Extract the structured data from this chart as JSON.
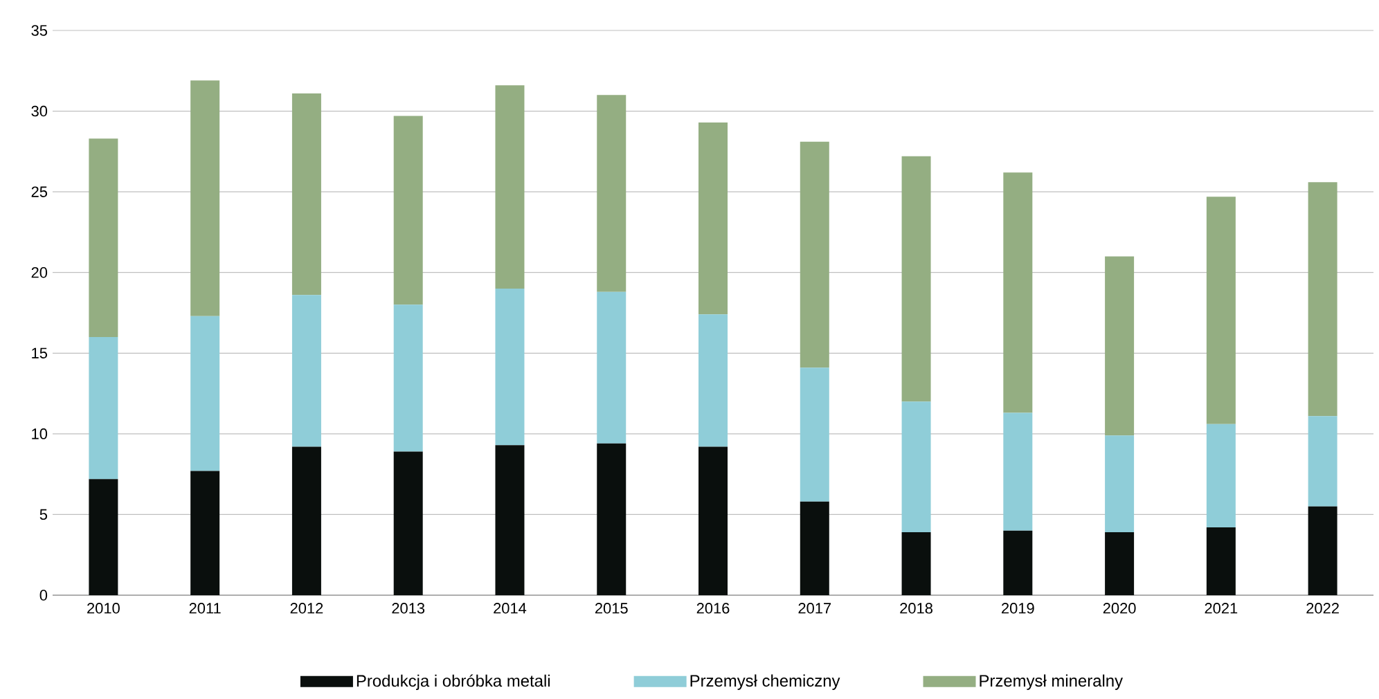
{
  "chart_data": {
    "type": "bar",
    "stacked": true,
    "categories": [
      "2010",
      "2011",
      "2012",
      "2013",
      "2014",
      "2015",
      "2016",
      "2017",
      "2018",
      "2019",
      "2020",
      "2021",
      "2022"
    ],
    "series": [
      {
        "name": "Produkcja i obróbka metali",
        "color": "#0a0f0d",
        "values": [
          7.2,
          7.7,
          9.2,
          8.9,
          9.3,
          9.4,
          9.2,
          5.8,
          3.9,
          4.0,
          3.9,
          4.2,
          5.5
        ]
      },
      {
        "name": "Przemysł chemiczny",
        "color": "#8fcdd8",
        "values": [
          8.8,
          9.6,
          9.4,
          9.1,
          9.7,
          9.4,
          8.2,
          8.3,
          8.1,
          7.3,
          6.0,
          6.4,
          5.6
        ]
      },
      {
        "name": "Przemysł mineralny",
        "color": "#94ae82",
        "values": [
          12.3,
          14.6,
          12.5,
          11.7,
          12.6,
          12.2,
          11.9,
          14.0,
          15.2,
          14.9,
          11.1,
          14.1,
          14.5
        ]
      }
    ],
    "ylim": [
      0,
      35
    ],
    "yticks": [
      0,
      5,
      10,
      15,
      20,
      25,
      30,
      35
    ],
    "grid": "y",
    "legend": "bottom"
  }
}
